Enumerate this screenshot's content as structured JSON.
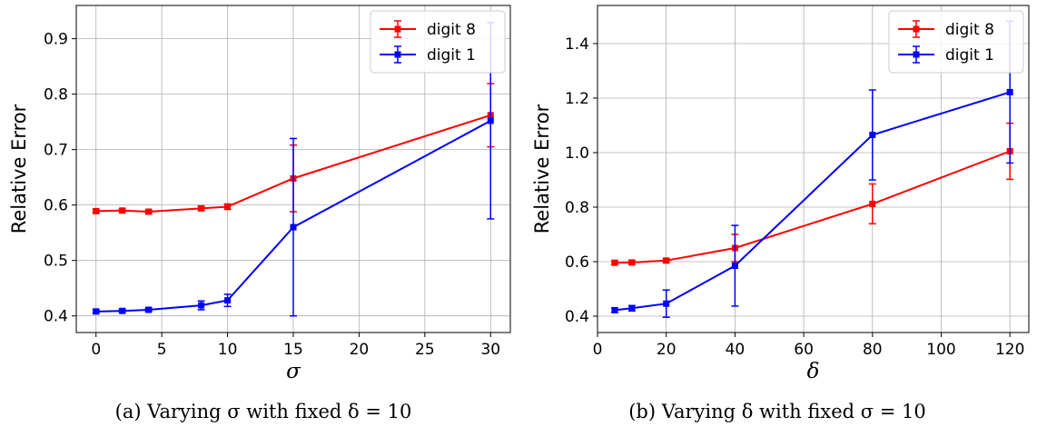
{
  "chart_data": [
    {
      "type": "line",
      "caption": "(a) Varying σ with fixed δ = 10",
      "xlabel": "σ",
      "ylabel": "Relative Error",
      "xlim": [
        -1.5,
        31.5
      ],
      "ylim": [
        0.37,
        0.96
      ],
      "xticks": [
        0,
        5,
        10,
        15,
        20,
        25,
        30
      ],
      "yticks": [
        0.4,
        0.5,
        0.6,
        0.7,
        0.8,
        0.9
      ],
      "grid": true,
      "legend_position": "top-right",
      "series": [
        {
          "name": "digit 8",
          "color": "#ff0000",
          "points": [
            {
              "x": 0,
              "y": 0.589,
              "err": 0.003
            },
            {
              "x": 2,
              "y": 0.59,
              "err": 0.003
            },
            {
              "x": 4,
              "y": 0.588,
              "err": 0.003
            },
            {
              "x": 8,
              "y": 0.594,
              "err": 0.004
            },
            {
              "x": 10,
              "y": 0.597,
              "err": 0.005
            },
            {
              "x": 15,
              "y": 0.648,
              "err": 0.06
            },
            {
              "x": 30,
              "y": 0.762,
              "err": 0.057
            }
          ]
        },
        {
          "name": "digit 1",
          "color": "#0000ff",
          "points": [
            {
              "x": 0,
              "y": 0.408,
              "err": 0.003
            },
            {
              "x": 2,
              "y": 0.409,
              "err": 0.003
            },
            {
              "x": 4,
              "y": 0.411,
              "err": 0.003
            },
            {
              "x": 8,
              "y": 0.419,
              "err": 0.008
            },
            {
              "x": 10,
              "y": 0.428,
              "err": 0.011
            },
            {
              "x": 15,
              "y": 0.56,
              "err": 0.16
            },
            {
              "x": 30,
              "y": 0.752,
              "err": 0.177
            }
          ]
        }
      ]
    },
    {
      "type": "line",
      "caption": "(b) Varying δ with fixed σ = 10",
      "xlabel": "δ",
      "ylabel": "Relative Error",
      "xlim": [
        0,
        125.5
      ],
      "ylim": [
        0.34,
        1.54
      ],
      "xticks": [
        0,
        20,
        40,
        60,
        80,
        100,
        120
      ],
      "yticks": [
        0.4,
        0.6,
        0.8,
        1.0,
        1.2,
        1.4
      ],
      "grid": true,
      "legend_position": "top-right",
      "series": [
        {
          "name": "digit 8",
          "color": "#ff0000",
          "points": [
            {
              "x": 5,
              "y": 0.596,
              "err": 0.006
            },
            {
              "x": 10,
              "y": 0.597,
              "err": 0.007
            },
            {
              "x": 20,
              "y": 0.604,
              "err": 0.007
            },
            {
              "x": 40,
              "y": 0.65,
              "err": 0.05
            },
            {
              "x": 80,
              "y": 0.812,
              "err": 0.073
            },
            {
              "x": 120,
              "y": 1.005,
              "err": 0.103
            }
          ]
        },
        {
          "name": "digit 1",
          "color": "#0000ff",
          "points": [
            {
              "x": 5,
              "y": 0.422,
              "err": 0.008
            },
            {
              "x": 10,
              "y": 0.429,
              "err": 0.01
            },
            {
              "x": 20,
              "y": 0.446,
              "err": 0.05
            },
            {
              "x": 40,
              "y": 0.585,
              "err": 0.148
            },
            {
              "x": 80,
              "y": 1.065,
              "err": 0.165
            },
            {
              "x": 120,
              "y": 1.222,
              "err": 0.26
            }
          ]
        }
      ]
    }
  ]
}
